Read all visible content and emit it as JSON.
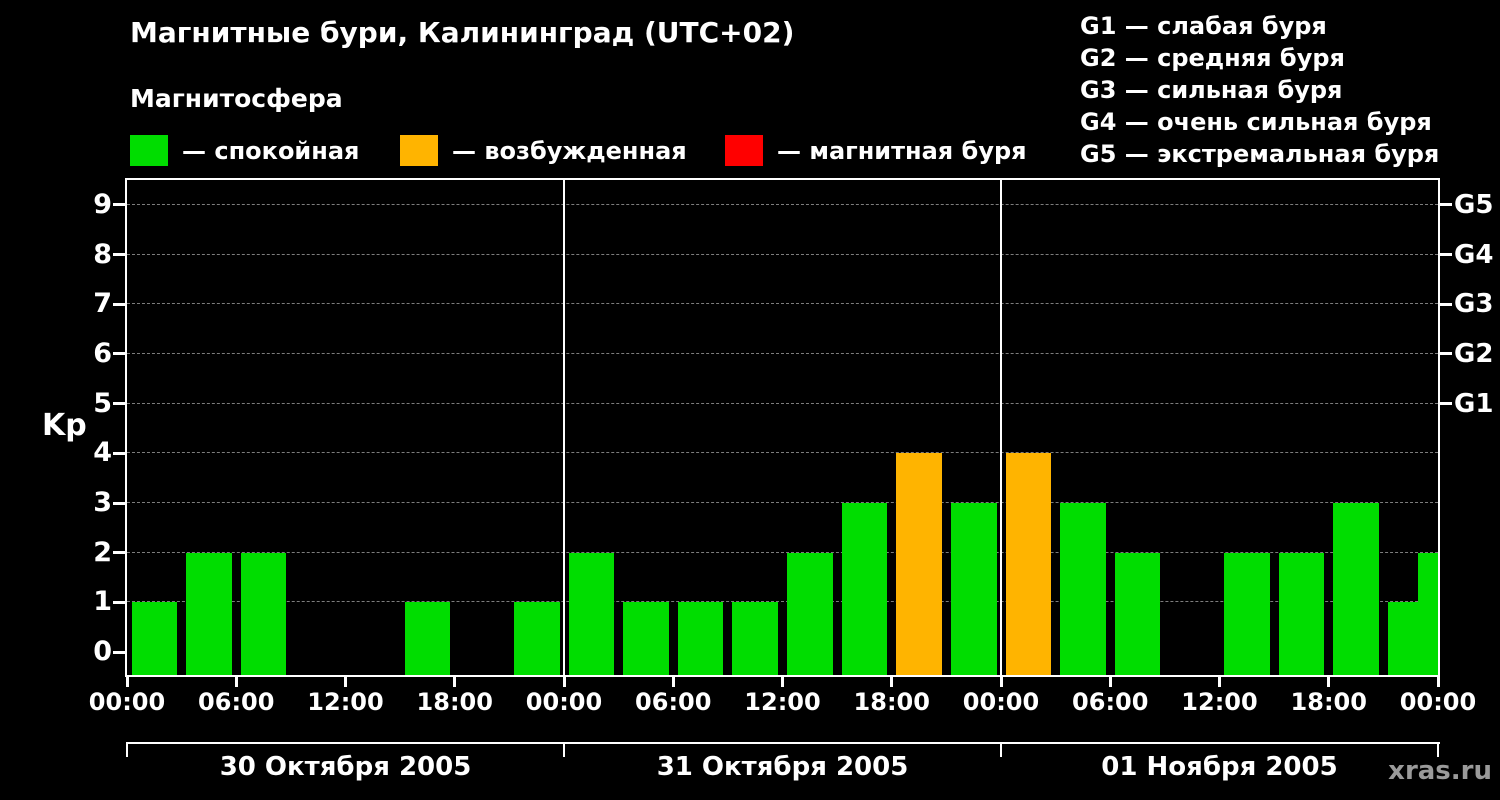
{
  "header": {
    "title": "Магнитные бури, Калининград (UTC+02)",
    "subtitle": "Магнитосфера"
  },
  "legend": {
    "items": [
      {
        "label": "— спокойная",
        "color": "#00dd00"
      },
      {
        "label": "— возбужденная",
        "color": "#ffb400"
      },
      {
        "label": "— магнитная буря",
        "color": "#ff0000"
      }
    ]
  },
  "g_legend": {
    "items": [
      "G1 — слабая буря",
      "G2 — средняя буря",
      "G3 — сильная буря",
      "G4 — очень сильная буря",
      "G5 — экстремальная буря"
    ]
  },
  "watermark": "xras.ru",
  "chart_data": {
    "type": "bar",
    "title": "Магнитные бури, Калининград (UTC+02)",
    "ylabel": "Kp",
    "ylim": [
      0,
      9
    ],
    "yticks": [
      0,
      1,
      2,
      3,
      4,
      5,
      6,
      7,
      8,
      9
    ],
    "grid": "dashed horizontal gridlines at Kp 1..9, black background",
    "bar_interval_hours": 3,
    "x_tick_labels": [
      "00:00",
      "06:00",
      "12:00",
      "18:00",
      "00:00",
      "06:00",
      "12:00",
      "18:00",
      "00:00",
      "06:00",
      "12:00",
      "18:00",
      "00:00"
    ],
    "right_axis": [
      {
        "label": "G1",
        "value": 5
      },
      {
        "label": "G2",
        "value": 6
      },
      {
        "label": "G3",
        "value": 7
      },
      {
        "label": "G4",
        "value": 8
      },
      {
        "label": "G5",
        "value": 9
      }
    ],
    "days": [
      {
        "date": "30 Октября 2005",
        "values": [
          1,
          2,
          2,
          0,
          0,
          1,
          0,
          1
        ]
      },
      {
        "date": "31 Октября 2005",
        "values": [
          2,
          1,
          1,
          1,
          2,
          3,
          4,
          3
        ]
      },
      {
        "date": "01 Ноября 2005",
        "values": [
          4,
          3,
          2,
          0,
          2,
          2,
          3,
          1
        ]
      }
    ],
    "clipped_next_bar": {
      "value": 2
    },
    "colors": {
      "quiet": "#00dd00",
      "excited": "#ffb400",
      "storm": "#ff0000",
      "grid": "#7d7d7d"
    },
    "color_rule": {
      "quiet_max": 3,
      "excited": 4,
      "storm_min": 5
    }
  }
}
